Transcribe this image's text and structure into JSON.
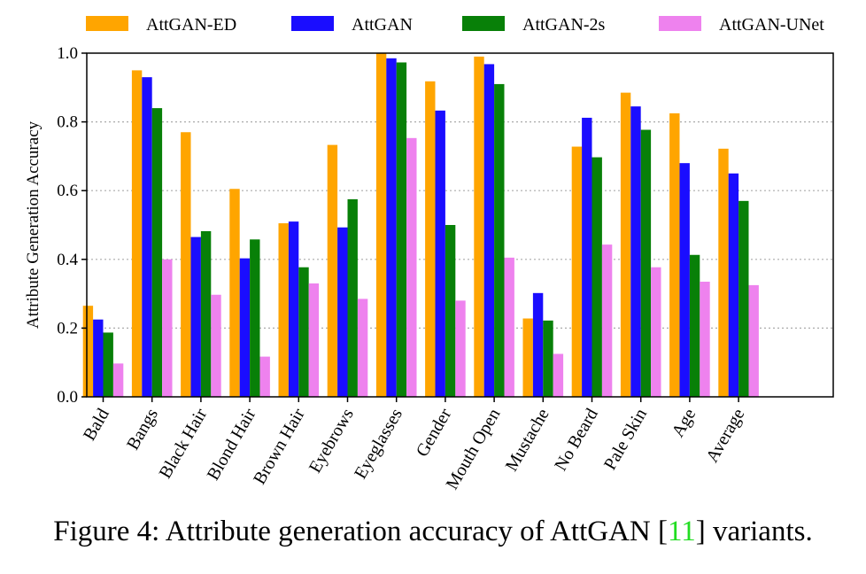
{
  "chart_data": {
    "type": "bar",
    "title": "",
    "xlabel": "",
    "ylabel": "Attribute Generation Accuracy",
    "ylim": [
      0,
      1.0
    ],
    "yticks": [
      "0.0",
      "0.2",
      "0.4",
      "0.6",
      "0.8",
      "1.0"
    ],
    "grid": "horizontal dotted",
    "legend_position": "top",
    "categories": [
      "Bald",
      "Bangs",
      "Black Hair",
      "Blond Hair",
      "Brown Hair",
      "Eyebrows",
      "Eyeglasses",
      "Gender",
      "Mouth Open",
      "Mustache",
      "No Beard",
      "Pale Skin",
      "Age",
      "Average"
    ],
    "series": [
      {
        "name": "AttGAN-ED",
        "color": "#ffa500",
        "values": [
          0.265,
          0.95,
          0.77,
          0.605,
          0.505,
          0.733,
          1.0,
          0.918,
          0.99,
          0.228,
          0.728,
          0.885,
          0.825,
          0.722
        ]
      },
      {
        "name": "AttGAN",
        "color": "#1a0dff",
        "values": [
          0.225,
          0.93,
          0.465,
          0.403,
          0.51,
          0.493,
          0.985,
          0.833,
          0.968,
          0.302,
          0.812,
          0.845,
          0.68,
          0.65
        ]
      },
      {
        "name": "AttGAN-2s",
        "color": "#088008",
        "values": [
          0.187,
          0.84,
          0.482,
          0.458,
          0.377,
          0.575,
          0.973,
          0.5,
          0.91,
          0.222,
          0.697,
          0.777,
          0.413,
          0.57
        ]
      },
      {
        "name": "AttGAN-UNet",
        "color": "#ee82ee",
        "values": [
          0.097,
          0.4,
          0.297,
          0.117,
          0.33,
          0.285,
          0.753,
          0.28,
          0.405,
          0.125,
          0.443,
          0.377,
          0.335,
          0.325
        ]
      }
    ]
  },
  "caption": {
    "prefix": "Figure 4: Attribute generation accuracy of AttGAN [",
    "ref": "11",
    "suffix": "] variants."
  }
}
